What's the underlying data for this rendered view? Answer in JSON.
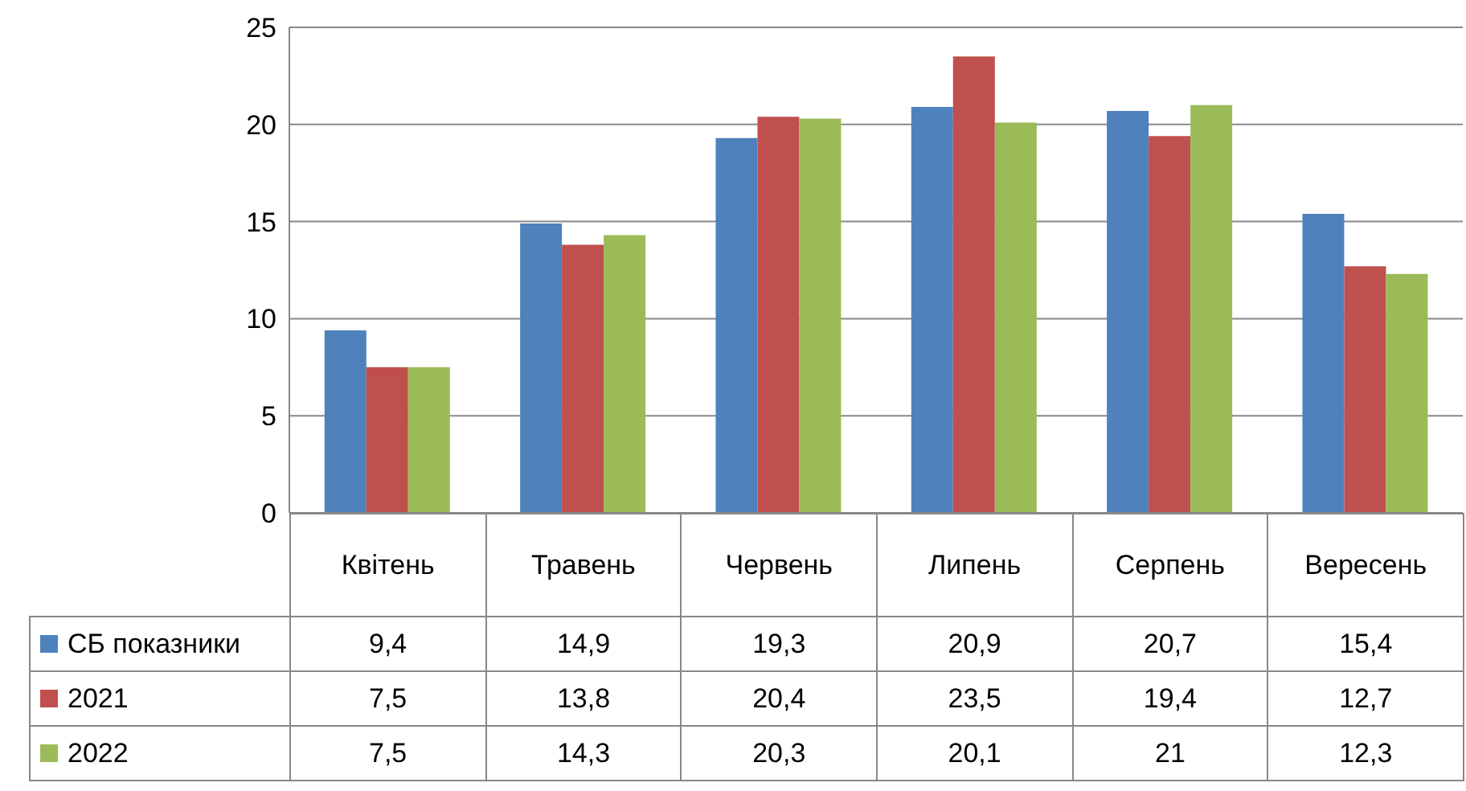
{
  "chart_data": {
    "type": "bar",
    "categories": [
      "Квітень",
      "Травень",
      "Червень",
      "Липень",
      "Серпень",
      "Вересень"
    ],
    "series": [
      {
        "name": "СБ показники",
        "color": "#4f81bd",
        "values": [
          9.4,
          14.9,
          19.3,
          20.9,
          20.7,
          15.4
        ],
        "value_labels": [
          "9,4",
          "14,9",
          "19,3",
          "20,9",
          "20,7",
          "15,4"
        ]
      },
      {
        "name": "2021",
        "color": "#c0504d",
        "values": [
          7.5,
          13.8,
          20.4,
          23.5,
          19.4,
          12.7
        ],
        "value_labels": [
          "7,5",
          "13,8",
          "20,4",
          "23,5",
          "19,4",
          "12,7"
        ]
      },
      {
        "name": "2022",
        "color": "#9bbb59",
        "values": [
          7.5,
          14.3,
          20.3,
          20.1,
          21,
          12.3
        ],
        "value_labels": [
          "7,5",
          "14,3",
          "20,3",
          "20,1",
          "21",
          "12,3"
        ]
      }
    ],
    "ylim": [
      0,
      25
    ],
    "yticks": [
      0,
      5,
      10,
      15,
      20,
      25
    ],
    "grid": "y",
    "legend": "bottom"
  }
}
